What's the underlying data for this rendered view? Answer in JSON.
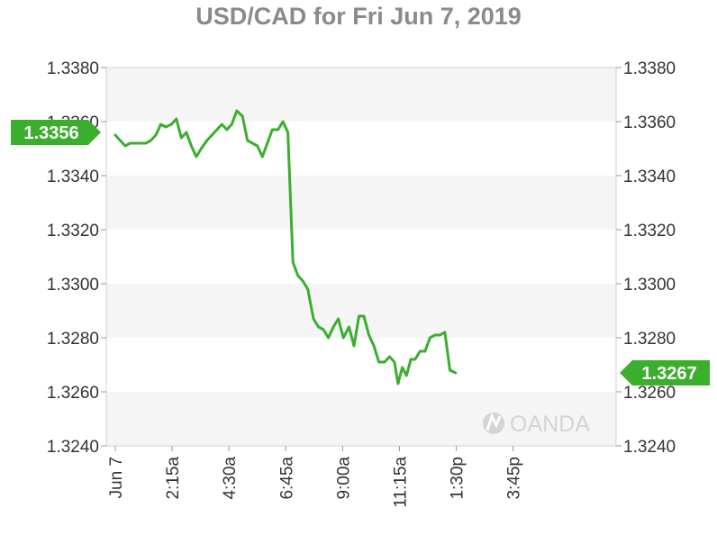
{
  "chart_data": {
    "type": "line",
    "title": "USD/CAD for Fri Jun 7, 2019",
    "xlabel": "",
    "ylabel": "",
    "x_ticks": [
      "Jun 7",
      "2:15a",
      "4:30a",
      "6:45a",
      "9:00a",
      "11:15a",
      "1:30p",
      "3:45p"
    ],
    "x_tick_positions": [
      0,
      8,
      16,
      24,
      32,
      40,
      48,
      56
    ],
    "ylim": [
      1.324,
      1.338
    ],
    "y_ticks": [
      "1.3380",
      "1.3360",
      "1.3340",
      "1.3320",
      "1.3300",
      "1.3280",
      "1.3260",
      "1.3240"
    ],
    "y_tick_values": [
      1.338,
      1.336,
      1.334,
      1.332,
      1.33,
      1.328,
      1.326,
      1.324
    ],
    "grid": "alternating horizontal bands",
    "line_color": "#3bae2e",
    "band_color": "#f5f5f5",
    "open_label": "1.3356",
    "open_value": 1.3356,
    "last_label": "1.3267",
    "last_value": 1.3267,
    "watermark": "OANDA",
    "series": [
      {
        "points": [
          [
            0,
            1.3355
          ],
          [
            0.7,
            1.3353
          ],
          [
            1.4,
            1.3351
          ],
          [
            2.1,
            1.3352
          ],
          [
            2.9,
            1.3352
          ],
          [
            3.6,
            1.3352
          ],
          [
            4.3,
            1.3352
          ],
          [
            5,
            1.3353
          ],
          [
            5.7,
            1.3355
          ],
          [
            6.4,
            1.3359
          ],
          [
            7.1,
            1.3358
          ],
          [
            7.9,
            1.3359
          ],
          [
            8.6,
            1.3361
          ],
          [
            9.3,
            1.3354
          ],
          [
            10,
            1.3356
          ],
          [
            10.7,
            1.3351
          ],
          [
            11.4,
            1.3347
          ],
          [
            12.1,
            1.335
          ],
          [
            12.9,
            1.3353
          ],
          [
            13.6,
            1.3355
          ],
          [
            14.3,
            1.3357
          ],
          [
            15,
            1.3359
          ],
          [
            15.7,
            1.3357
          ],
          [
            16.4,
            1.3359
          ],
          [
            17.1,
            1.3364
          ],
          [
            17.9,
            1.3362
          ],
          [
            18.6,
            1.3353
          ],
          [
            19.3,
            1.3352
          ],
          [
            20,
            1.3351
          ],
          [
            20.7,
            1.3347
          ],
          [
            21.4,
            1.3352
          ],
          [
            22.1,
            1.3357
          ],
          [
            22.9,
            1.3357
          ],
          [
            23.6,
            1.336
          ],
          [
            24.3,
            1.3356
          ],
          [
            25,
            1.3308
          ],
          [
            25.7,
            1.3303
          ],
          [
            26.4,
            1.3301
          ],
          [
            27.1,
            1.3298
          ],
          [
            27.9,
            1.3287
          ],
          [
            28.6,
            1.3284
          ],
          [
            29.3,
            1.3283
          ],
          [
            30,
            1.328
          ],
          [
            30.7,
            1.3284
          ],
          [
            31.4,
            1.3287
          ],
          [
            32.1,
            1.328
          ],
          [
            32.9,
            1.3284
          ],
          [
            33.6,
            1.3277
          ],
          [
            34.3,
            1.3288
          ],
          [
            35,
            1.3288
          ],
          [
            35.7,
            1.3281
          ],
          [
            36.4,
            1.3277
          ],
          [
            37.1,
            1.3271
          ],
          [
            37.9,
            1.3271
          ],
          [
            38.6,
            1.3273
          ],
          [
            39.3,
            1.3271
          ],
          [
            39.8,
            1.3263
          ],
          [
            40.4,
            1.3269
          ],
          [
            41,
            1.3266
          ],
          [
            41.6,
            1.3272
          ],
          [
            42.2,
            1.3272
          ],
          [
            42.9,
            1.3275
          ],
          [
            43.6,
            1.3275
          ],
          [
            44.3,
            1.328
          ],
          [
            45,
            1.3281
          ],
          [
            45.7,
            1.3281
          ],
          [
            46.4,
            1.3282
          ],
          [
            47.1,
            1.3268
          ],
          [
            47.9,
            1.3267
          ]
        ]
      }
    ]
  }
}
